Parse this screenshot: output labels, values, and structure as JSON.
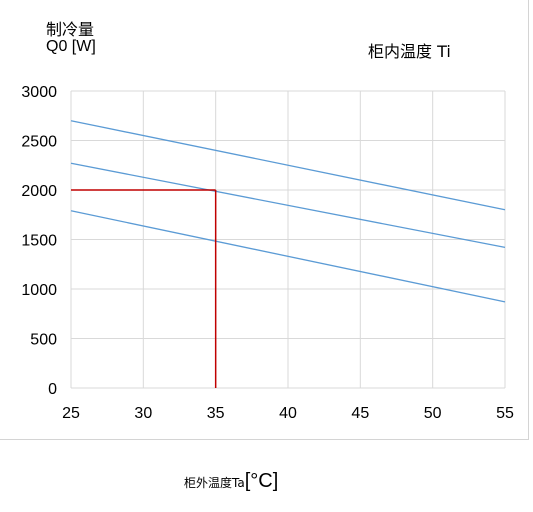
{
  "chart_data": {
    "type": "line",
    "ylabel_line1": "制冷量",
    "ylabel_line2": "Q0 [W]",
    "legend_title": "柜内温度  Ti",
    "xlabel": "柜外温度Ta",
    "xlabel_unit": "[°C]",
    "xlim": [
      25,
      55
    ],
    "ylim": [
      0,
      3000
    ],
    "x_ticks": [
      25,
      30,
      35,
      40,
      45,
      50,
      55
    ],
    "y_ticks": [
      0,
      500,
      1000,
      1500,
      2000,
      2500,
      3000
    ],
    "grid": true,
    "series": [
      {
        "x": [
          25,
          55
        ],
        "y": [
          2700,
          1800
        ],
        "color": "#5b9bd5"
      },
      {
        "x": [
          25,
          55
        ],
        "y": [
          2270,
          1420
        ],
        "color": "#5b9bd5"
      },
      {
        "x": [
          25,
          55
        ],
        "y": [
          1790,
          870
        ],
        "color": "#5b9bd5"
      }
    ],
    "reference": {
      "x": 35,
      "y": 2000,
      "color": "#c00000"
    }
  }
}
